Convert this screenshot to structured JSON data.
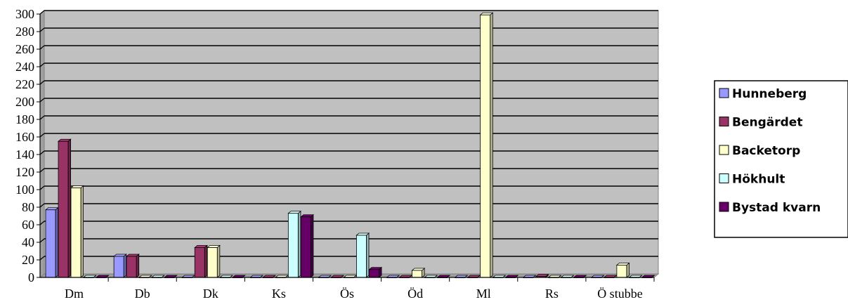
{
  "chart_data": {
    "type": "bar",
    "title": "",
    "xlabel": "",
    "ylabel": "",
    "ylim": [
      0,
      300
    ],
    "ytick_step": 20,
    "grid": true,
    "legend_position": "right",
    "categories": [
      "Dm",
      "Db",
      "Dk",
      "Ks",
      "Ös",
      "Öd",
      "Ml",
      "Rs",
      "Ö stubbe"
    ],
    "series": [
      {
        "name": "Hunneberg",
        "color": "#9999ff",
        "values": [
          77,
          24,
          0,
          0,
          0,
          0,
          0,
          0,
          0
        ]
      },
      {
        "name": "Bengärdet",
        "color": "#993366",
        "values": [
          155,
          24,
          34,
          0,
          0,
          0,
          0,
          1,
          0
        ]
      },
      {
        "name": "Backetorp",
        "color": "#ffffcc",
        "values": [
          102,
          0,
          34,
          0,
          0,
          8,
          299,
          0,
          14
        ]
      },
      {
        "name": "Hökhult",
        "color": "#ccffff",
        "values": [
          0,
          0,
          0,
          73,
          48,
          0,
          0,
          0,
          0
        ]
      },
      {
        "name": "Bystad kvarn",
        "color": "#660066",
        "values": [
          0,
          0,
          0,
          69,
          9,
          0,
          0,
          0,
          0
        ]
      }
    ],
    "plot_background": "#c0c0c0"
  }
}
